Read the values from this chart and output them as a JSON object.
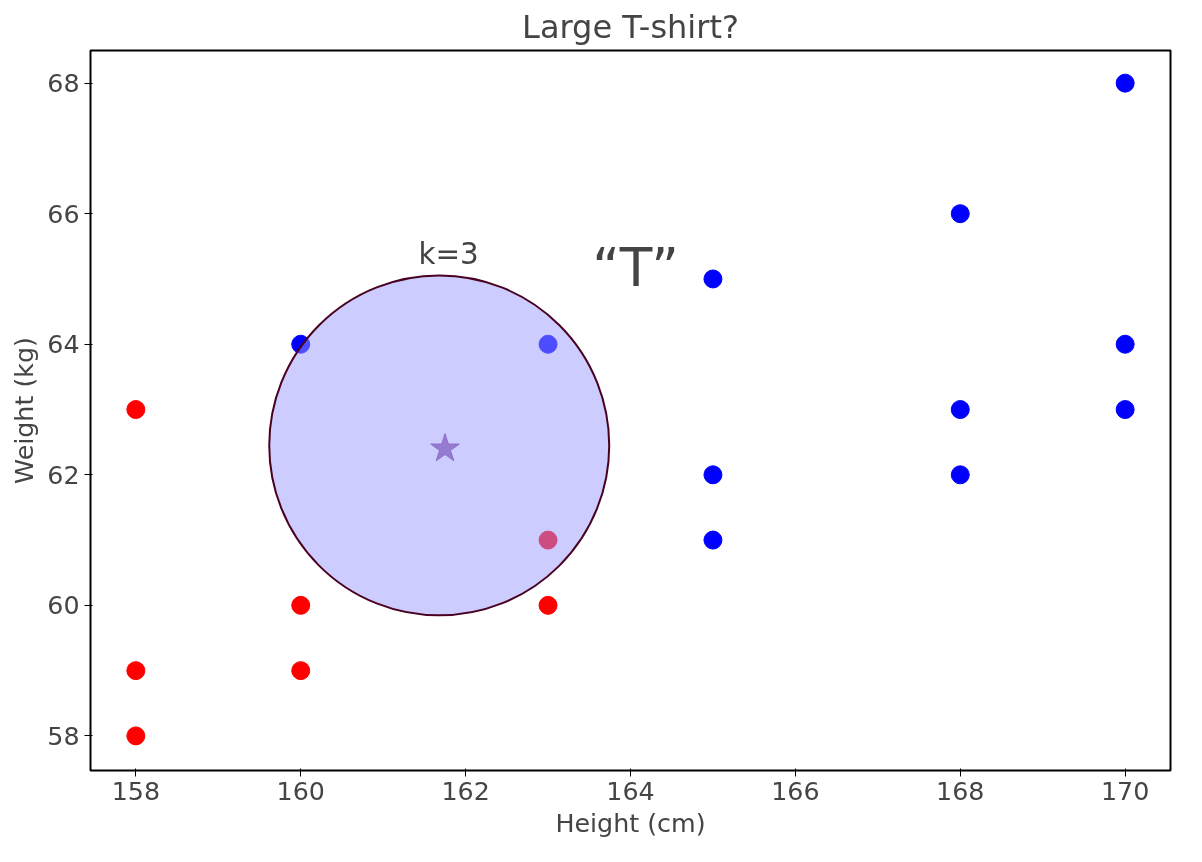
{
  "chart_data": {
    "type": "scatter",
    "title": "Large T-shirt?",
    "xlabel": "Height (cm)",
    "ylabel": "Weight (kg)",
    "xlim": [
      157.45,
      170.55
    ],
    "ylim": [
      57.47,
      68.5
    ],
    "xticks": [
      158,
      160,
      162,
      164,
      166,
      168,
      170
    ],
    "yticks": [
      58,
      60,
      62,
      64,
      66,
      68
    ],
    "grid": false,
    "marker": "circle",
    "series": [
      {
        "type": "bubble",
        "color": "#9999ff",
        "x": [
          161.68
        ],
        "values": [
          62.45
        ],
        "sizes": [
          1
        ]
      },
      {
        "color": "#ff0000",
        "x": [
          158,
          158,
          158,
          160,
          160,
          163,
          163
        ],
        "values": [
          63,
          59,
          58,
          60,
          59,
          61,
          60
        ]
      },
      {
        "color": "#0000ff",
        "x": [
          160,
          163,
          165,
          165,
          165,
          168,
          168,
          168,
          170,
          170,
          170
        ],
        "values": [
          64,
          64,
          65,
          62,
          61,
          66,
          63,
          62,
          68,
          64,
          63
        ]
      },
      {
        "color": "#7f3f98",
        "marker": "star",
        "x": [
          161.75
        ],
        "values": [
          62.4
        ]
      }
    ],
    "annotations": [
      "k=3",
      "“T”"
    ]
  }
}
